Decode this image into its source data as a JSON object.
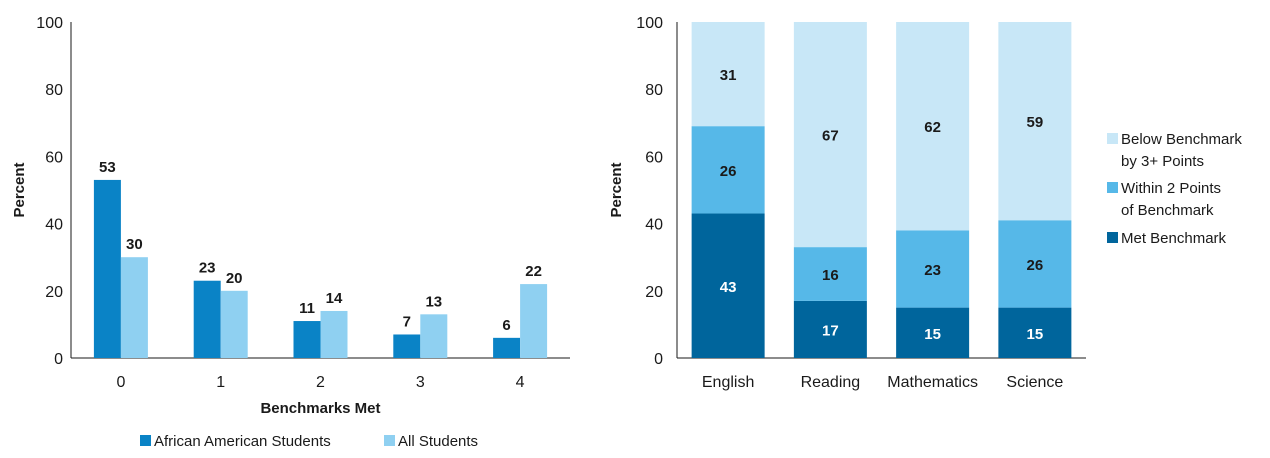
{
  "chart_data": [
    {
      "type": "bar",
      "categories": [
        "0",
        "1",
        "2",
        "3",
        "4"
      ],
      "series": [
        {
          "name": "African American Students",
          "values": [
            53,
            23,
            11,
            7,
            6
          ],
          "color": "#0a83c6"
        },
        {
          "name": "All Students",
          "values": [
            30,
            20,
            14,
            13,
            22
          ],
          "color": "#8fd0f1"
        }
      ],
      "title": "",
      "xlabel": "Benchmarks Met",
      "ylabel": "Percent",
      "ylim": [
        0,
        100
      ],
      "yticks": [
        0,
        20,
        40,
        60,
        80,
        100
      ],
      "grid": false,
      "legend": "bottom"
    },
    {
      "type": "bar",
      "stacked": true,
      "categories": [
        "English",
        "Reading",
        "Mathematics",
        "Science"
      ],
      "series": [
        {
          "name": "Met Benchmark",
          "values": [
            43,
            17,
            15,
            15
          ],
          "color": "#00659c",
          "label_color": "#ffffff"
        },
        {
          "name": "Within 2 Points\nof Benchmark",
          "values": [
            26,
            16,
            23,
            26
          ],
          "color": "#56b8e8",
          "label_color": "#1a1a1a"
        },
        {
          "name": "Below Benchmark\nby 3+ Points",
          "values": [
            31,
            67,
            62,
            59
          ],
          "color": "#c8e7f7",
          "label_color": "#1a1a1a"
        }
      ],
      "title": "",
      "xlabel": "",
      "ylabel": "Percent",
      "ylim": [
        0,
        100
      ],
      "yticks": [
        0,
        20,
        40,
        60,
        80,
        100
      ],
      "grid": false,
      "legend": "right"
    }
  ]
}
